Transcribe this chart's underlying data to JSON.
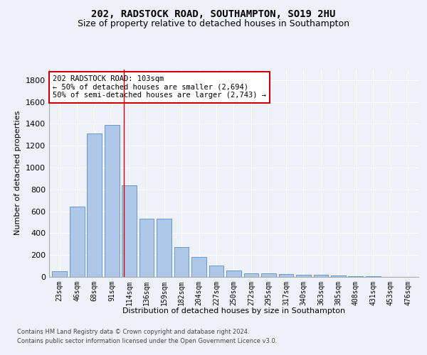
{
  "title": "202, RADSTOCK ROAD, SOUTHAMPTON, SO19 2HU",
  "subtitle": "Size of property relative to detached houses in Southampton",
  "xlabel": "Distribution of detached houses by size in Southampton",
  "ylabel": "Number of detached properties",
  "categories": [
    "23sqm",
    "46sqm",
    "68sqm",
    "91sqm",
    "114sqm",
    "136sqm",
    "159sqm",
    "182sqm",
    "204sqm",
    "227sqm",
    "250sqm",
    "272sqm",
    "295sqm",
    "317sqm",
    "340sqm",
    "363sqm",
    "385sqm",
    "408sqm",
    "431sqm",
    "453sqm",
    "476sqm"
  ],
  "values": [
    50,
    640,
    1310,
    1390,
    840,
    530,
    530,
    270,
    185,
    105,
    60,
    30,
    30,
    28,
    20,
    18,
    13,
    5,
    5,
    3,
    3
  ],
  "bar_color": "#aec6e8",
  "bar_edge_color": "#5a8fc2",
  "annotation_line1": "202 RADSTOCK ROAD: 103sqm",
  "annotation_line2": "← 50% of detached houses are smaller (2,694)",
  "annotation_line3": "50% of semi-detached houses are larger (2,743) →",
  "annotation_box_color": "#ffffff",
  "annotation_box_edge_color": "#cc0000",
  "vline_x_index": 3.7,
  "vline_color": "#cc0000",
  "ylim": [
    0,
    1900
  ],
  "yticks": [
    0,
    200,
    400,
    600,
    800,
    1000,
    1200,
    1400,
    1600,
    1800
  ],
  "footer1": "Contains HM Land Registry data © Crown copyright and database right 2024.",
  "footer2": "Contains public sector information licensed under the Open Government Licence v3.0.",
  "bg_color": "#eef2f8",
  "plot_bg_color": "#eef2f8",
  "title_fontsize": 10,
  "subtitle_fontsize": 9,
  "tick_fontsize": 7,
  "ylabel_fontsize": 8,
  "xlabel_fontsize": 8,
  "footer_fontsize": 6,
  "annot_fontsize": 7.5
}
